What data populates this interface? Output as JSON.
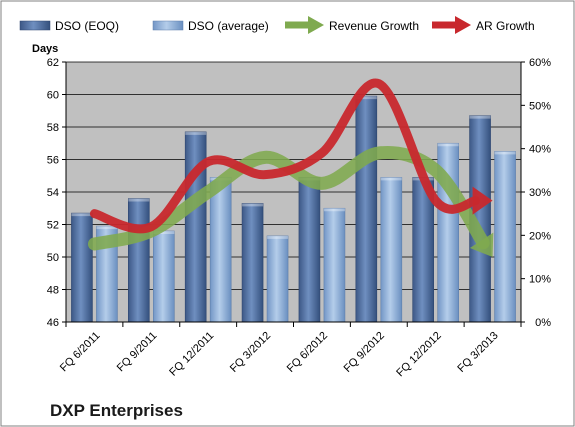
{
  "chart_data": {
    "type": "bar",
    "title": "DXP Enterprises",
    "categories": [
      "FQ 6/2011",
      "FQ 9/2011",
      "FQ 12/2011",
      "FQ 3/2012",
      "FQ 6/2012",
      "FQ 9/2012",
      "FQ 12/2012",
      "FQ 3/2013"
    ],
    "ylabel": "Days",
    "ylim": [
      46,
      62
    ],
    "yticks": [
      "46",
      "48",
      "50",
      "52",
      "54",
      "56",
      "58",
      "60",
      "62"
    ],
    "y2lim": [
      0,
      60
    ],
    "y2ticks": [
      "0%",
      "10%",
      "20%",
      "30%",
      "40%",
      "50%",
      "60%"
    ],
    "grid": true,
    "legend_position": "top",
    "series": [
      {
        "name": "DSO (EOQ)",
        "kind": "bar",
        "axis": "left",
        "color": "#4f6d9c",
        "values": [
          52.7,
          53.6,
          57.7,
          53.3,
          54.9,
          59.9,
          54.9,
          58.7
        ]
      },
      {
        "name": "DSO (average)",
        "kind": "bar",
        "axis": "left",
        "color": "#8fb0da",
        "values": [
          51.9,
          51.6,
          54.9,
          51.3,
          53.0,
          54.9,
          57.0,
          56.5
        ]
      },
      {
        "name": "Revenue Growth",
        "kind": "arrow-line",
        "axis": "right",
        "unit": "%",
        "color": "#7faa4f",
        "values": [
          18,
          21,
          30,
          38,
          32,
          39,
          35,
          15
        ]
      },
      {
        "name": "AR Growth",
        "kind": "arrow-line",
        "axis": "right",
        "unit": "%",
        "color": "#c8282d",
        "values": [
          25,
          22,
          37,
          34,
          39,
          55,
          28,
          28
        ]
      }
    ]
  },
  "colors": {
    "plot_background": "#c0c0c0",
    "gridline": "#000000",
    "border": "#808080"
  }
}
